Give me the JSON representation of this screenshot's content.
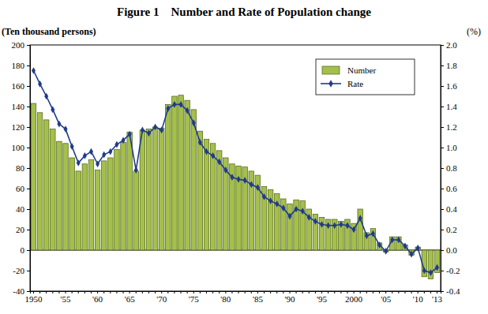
{
  "chart_data": {
    "type": "bar",
    "title": "Figure 1    Number and Rate of Population change",
    "y_label": "(Ten thousand persons)",
    "y2_label": "(%)",
    "categories": [
      "1950",
      null,
      null,
      null,
      null,
      "'55",
      null,
      null,
      null,
      null,
      "'60",
      null,
      null,
      null,
      null,
      "'65",
      null,
      null,
      null,
      null,
      "'70",
      null,
      null,
      null,
      null,
      "'75",
      null,
      null,
      null,
      null,
      "'80",
      null,
      null,
      null,
      null,
      "'85",
      null,
      null,
      null,
      null,
      "'90",
      null,
      null,
      null,
      null,
      "'95",
      null,
      null,
      null,
      null,
      "2000",
      null,
      null,
      null,
      null,
      "'05",
      null,
      null,
      null,
      null,
      "'10",
      null,
      null,
      "'13"
    ],
    "series": [
      {
        "name": "Number",
        "type": "bar",
        "color": "#a4c04a",
        "values": [
          143,
          134,
          127,
          118,
          106,
          104,
          90,
          77,
          84,
          88,
          78,
          87,
          90,
          98,
          105,
          115,
          77,
          117,
          118,
          120,
          119,
          142,
          150,
          151,
          146,
          137,
          116,
          108,
          104,
          97,
          90,
          84,
          82,
          81,
          77,
          73,
          62,
          59,
          55,
          50,
          45,
          49,
          48,
          40,
          35,
          32,
          30,
          30,
          28,
          30,
          26,
          40,
          17,
          21,
          7,
          -2,
          13,
          13,
          5,
          -5,
          3,
          -26,
          -28,
          -22
        ]
      },
      {
        "name": "Rate",
        "type": "line",
        "axis": "y2",
        "color": "#1f3c88",
        "marker": "diamond",
        "values": [
          1.75,
          1.62,
          1.5,
          1.37,
          1.23,
          1.18,
          1.01,
          0.85,
          0.92,
          0.96,
          0.84,
          0.93,
          0.96,
          1.03,
          1.07,
          1.13,
          0.78,
          1.17,
          1.14,
          1.2,
          1.17,
          1.38,
          1.42,
          1.42,
          1.36,
          1.24,
          1.05,
          0.96,
          0.92,
          0.86,
          0.78,
          0.71,
          0.69,
          0.68,
          0.64,
          0.61,
          0.52,
          0.48,
          0.45,
          0.41,
          0.33,
          0.4,
          0.38,
          0.32,
          0.28,
          0.25,
          0.24,
          0.24,
          0.25,
          0.24,
          0.2,
          0.31,
          0.14,
          0.16,
          0.05,
          -0.01,
          0.1,
          0.1,
          0.04,
          -0.04,
          0.02,
          -0.2,
          -0.22,
          -0.17
        ]
      }
    ],
    "ylim": [
      -40,
      200
    ],
    "yticks": [
      -40,
      -20,
      0,
      20,
      40,
      60,
      80,
      100,
      120,
      140,
      160,
      180,
      200
    ],
    "y2lim": [
      -0.4,
      2.0
    ],
    "y2ticks": [
      -0.4,
      -0.2,
      {
        "value": 0,
        "label": "0.0"
      },
      0.2,
      0.4,
      0.6,
      0.8,
      {
        "value": 1,
        "label": "1.0"
      },
      1.2,
      1.4,
      1.6,
      1.8,
      {
        "value": 2,
        "label": "2.0"
      }
    ],
    "legend": "top-right",
    "grid": false
  }
}
